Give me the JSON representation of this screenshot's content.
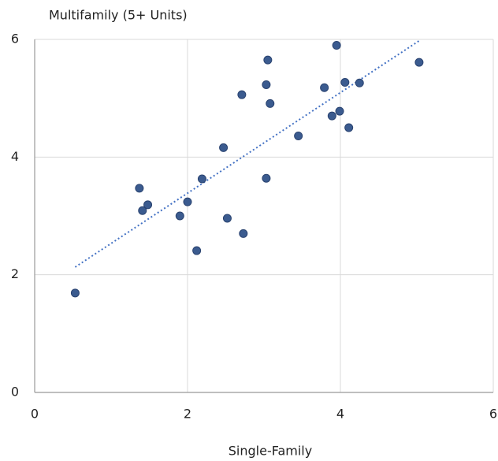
{
  "chart_data": {
    "type": "scatter",
    "x_label": "Single-Family",
    "y_label": "Multifamily (5+ Units)",
    "color": "#3b5b8f",
    "trendline": true,
    "trendline_color": "#4472c4",
    "grid": true,
    "x": [
      0.53,
      1.37,
      1.41,
      1.48,
      1.9,
      2.0,
      2.12,
      2.19,
      2.47,
      2.52,
      2.71,
      2.73,
      3.03,
      3.03,
      3.05,
      3.08,
      3.45,
      3.79,
      3.89,
      3.95,
      3.99,
      4.06,
      4.11,
      4.25,
      5.03
    ],
    "values": [
      1.69,
      3.47,
      3.09,
      3.19,
      3.0,
      3.24,
      2.41,
      3.63,
      4.16,
      2.96,
      5.06,
      2.7,
      5.23,
      3.64,
      5.65,
      4.91,
      4.36,
      5.18,
      4.7,
      5.9,
      4.78,
      5.27,
      4.5,
      5.26,
      5.61
    ],
    "xlim": [
      0,
      6
    ],
    "xticks": [
      0,
      2,
      4,
      6
    ],
    "ylim": [
      0,
      6
    ],
    "yticks": [
      0,
      2,
      4,
      6
    ]
  }
}
